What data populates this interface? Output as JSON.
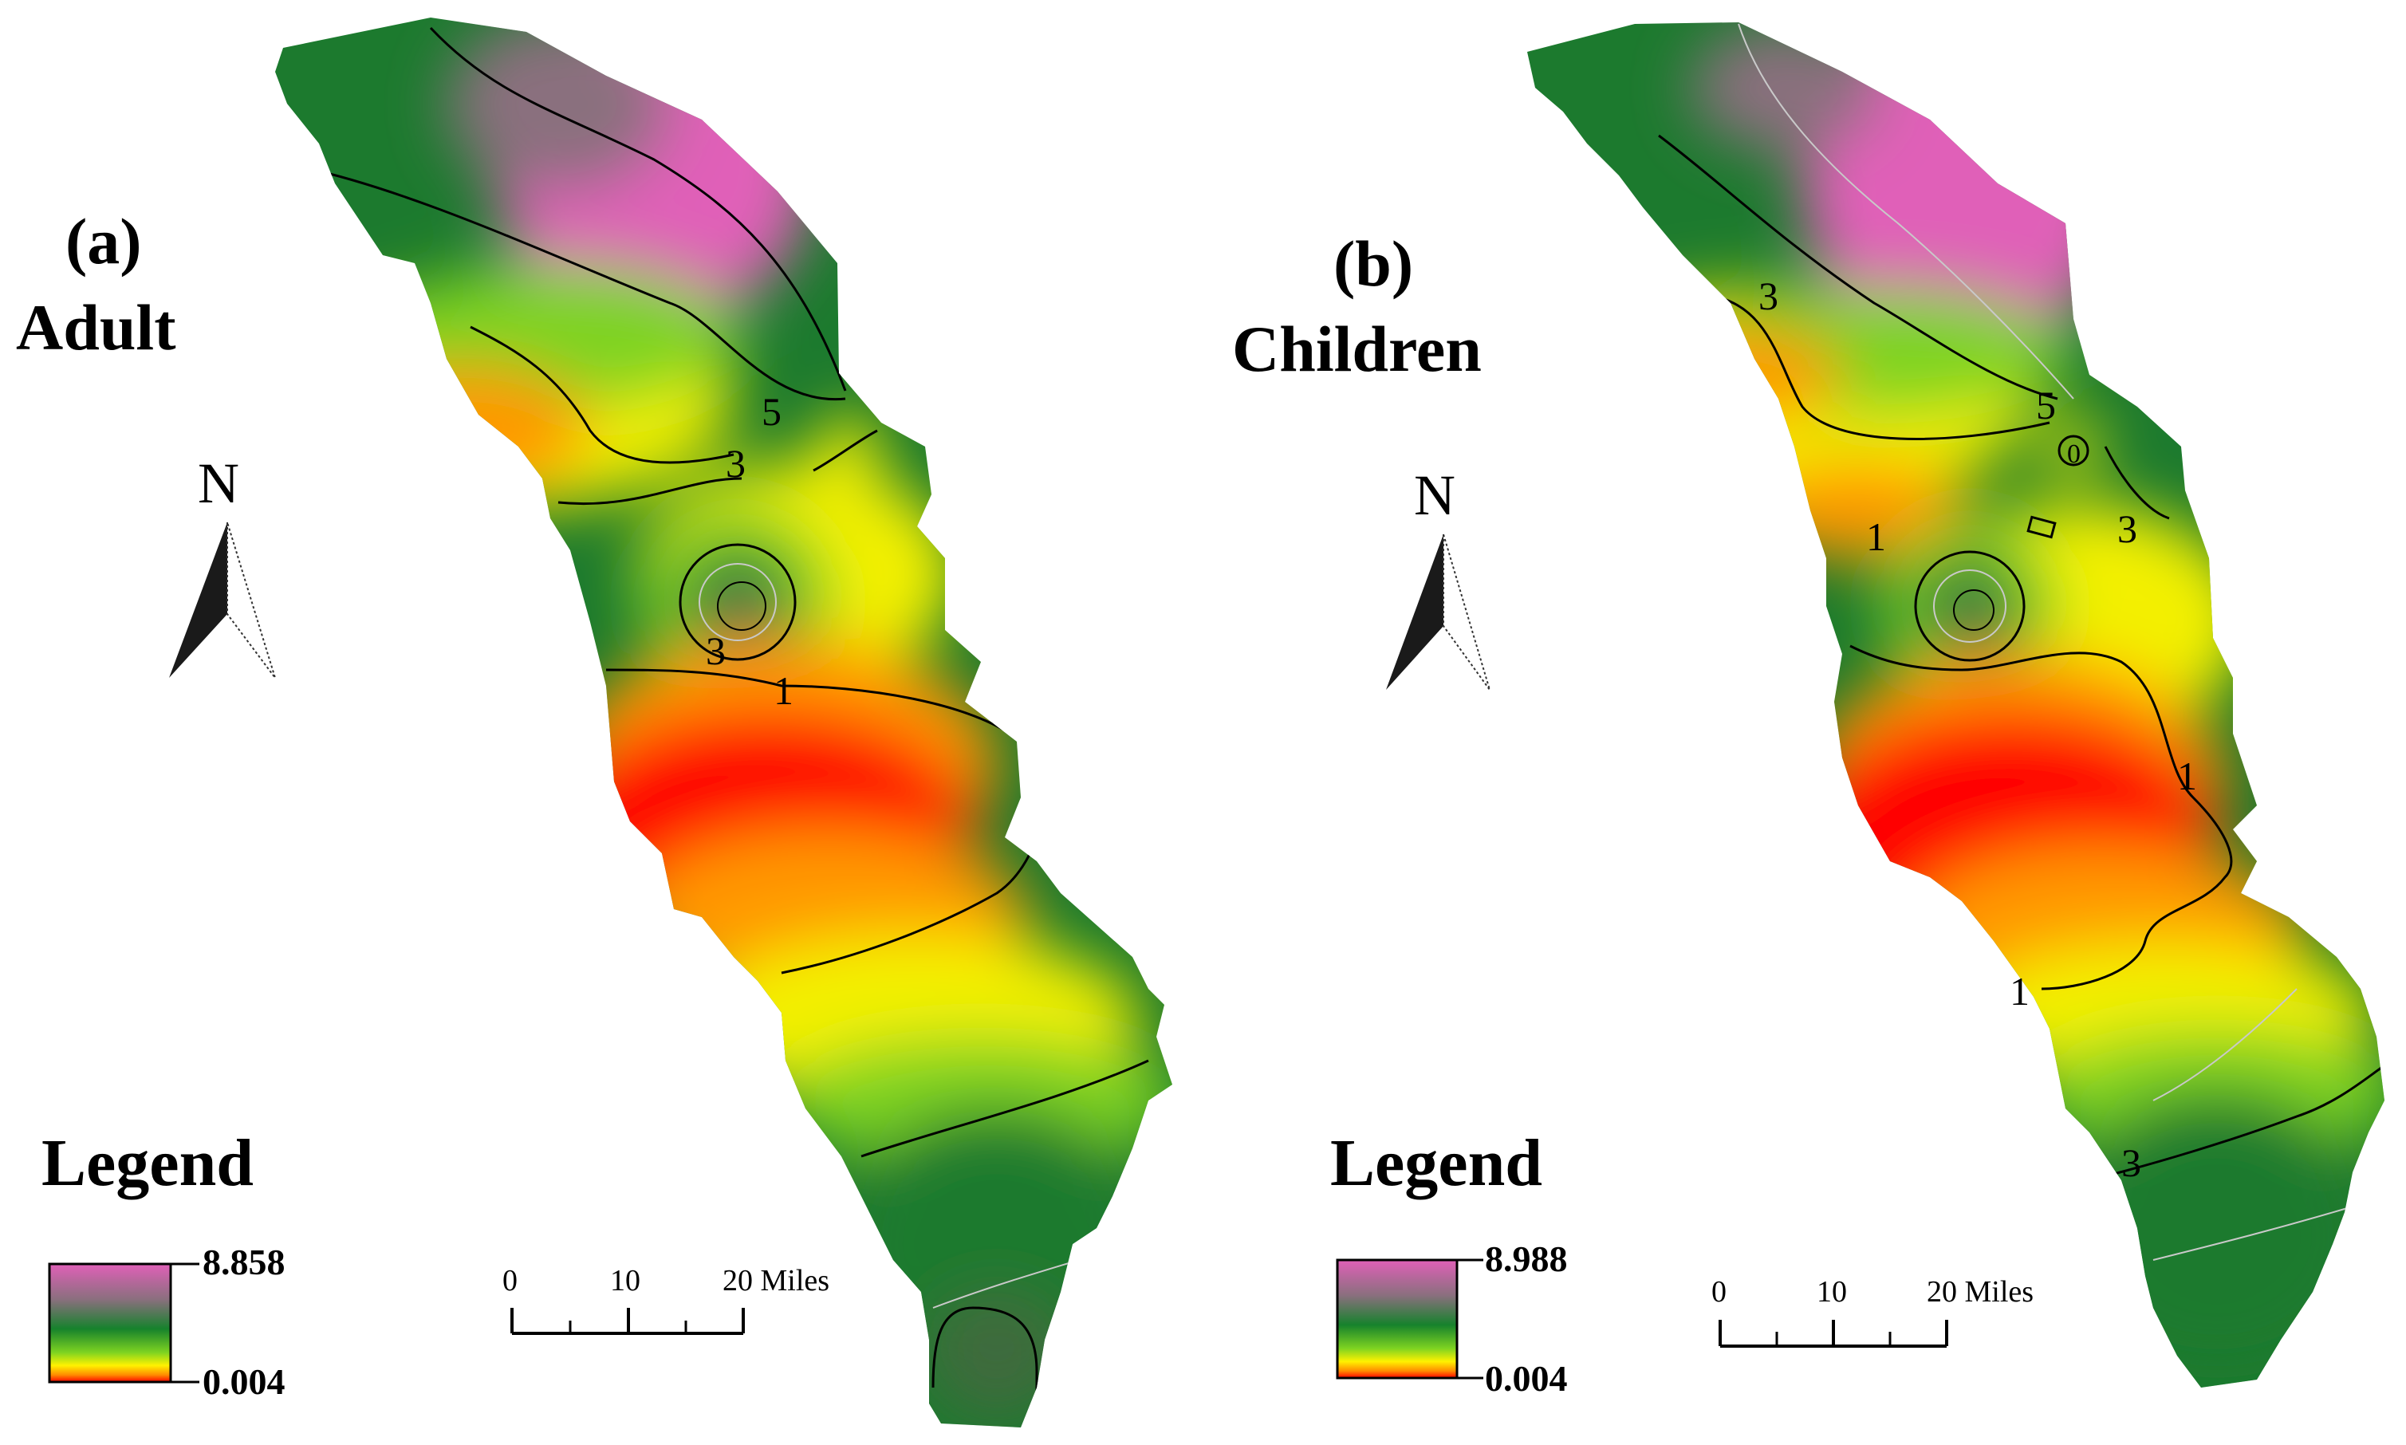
{
  "panels": [
    {
      "id": "a",
      "label": "(a)",
      "group": "Adult",
      "north": "N",
      "legend_title": "Legend",
      "legend_max": "8.858",
      "legend_min": "0.004",
      "scale_ticks": [
        "0",
        "10",
        "20 Miles"
      ],
      "contour_labels": [
        "5",
        "3",
        "3",
        "1"
      ]
    },
    {
      "id": "b",
      "label": "(b)",
      "group": "Children",
      "north": "N",
      "legend_title": "Legend",
      "legend_max": "8.988",
      "legend_min": "0.004",
      "scale_ticks": [
        "0",
        "10",
        "20 Miles"
      ],
      "contour_labels": [
        "3",
        "5",
        "0",
        "3",
        "1",
        "1",
        "1",
        "3"
      ]
    }
  ],
  "colors": {
    "high": "#e060b8",
    "mid_high": "#6f7a5a",
    "mid": "#1c7a2e",
    "mid_low": "#6cc23a",
    "low_mid": "#f3f000",
    "low": "#ff9800",
    "lowest": "#ff0000"
  }
}
